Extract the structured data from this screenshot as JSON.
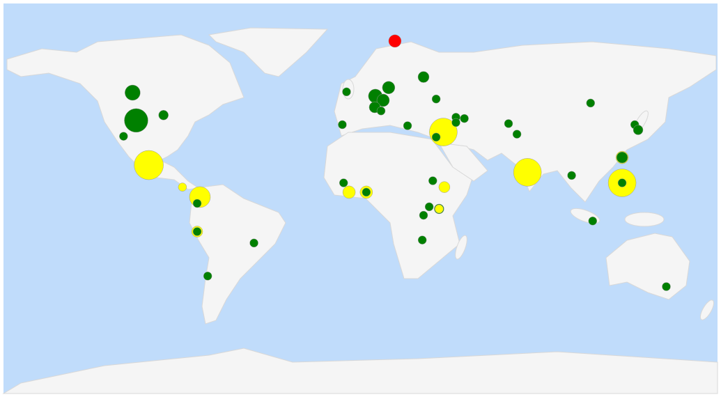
{
  "markers": [
    {
      "lat": 78,
      "lon": 16,
      "size": 81,
      "color": "#ff0000"
    },
    {
      "lat": 53.6,
      "lon": -108.7,
      "size": 121,
      "color": "#008000"
    },
    {
      "lat": 40.5,
      "lon": -107,
      "size": 289,
      "color": "#008000"
    },
    {
      "lat": 43,
      "lon": -94,
      "size": 49,
      "color": "#008000"
    },
    {
      "lat": 33,
      "lon": -113,
      "size": 36,
      "color": "#008000"
    },
    {
      "lat": 19.4,
      "lon": -101,
      "size": 441,
      "color": "#ffff00"
    },
    {
      "lat": 9,
      "lon": -85,
      "size": 36,
      "color": "#ffff00"
    },
    {
      "lat": 4.3,
      "lon": -76.7,
      "size": 225,
      "color": "#ffff00"
    },
    {
      "lat": 1.3,
      "lon": -78,
      "size": 36,
      "color": "#008000"
    },
    {
      "lat": -12,
      "lon": -78,
      "size": 64,
      "color": "#ffff00"
    },
    {
      "lat": -12,
      "lon": -78,
      "size": 36,
      "color": "#008000"
    },
    {
      "lat": -17.4,
      "lon": -51,
      "size": 36,
      "color": "#008000"
    },
    {
      "lat": -33,
      "lon": -73,
      "size": 36,
      "color": "#008000"
    },
    {
      "lat": 54,
      "lon": -7,
      "size": 36,
      "color": "#008000"
    },
    {
      "lat": 52,
      "lon": 6.7,
      "size": 100,
      "color": "#008000"
    },
    {
      "lat": 56,
      "lon": 13,
      "size": 81,
      "color": "#008000"
    },
    {
      "lat": 50,
      "lon": 10.4,
      "size": 81,
      "color": "#008000"
    },
    {
      "lat": 46.7,
      "lon": 6.4,
      "size": 64,
      "color": "#008000"
    },
    {
      "lat": 45,
      "lon": 9.4,
      "size": 36,
      "color": "#008000"
    },
    {
      "lat": 61,
      "lon": 29.6,
      "size": 64,
      "color": "#008000"
    },
    {
      "lat": 50.6,
      "lon": 35.6,
      "size": 36,
      "color": "#008000"
    },
    {
      "lat": 38.5,
      "lon": -9,
      "size": 36,
      "color": "#008000"
    },
    {
      "lat": 38,
      "lon": 22,
      "size": 36,
      "color": "#008000"
    },
    {
      "lat": 35,
      "lon": 39,
      "size": 400,
      "color": "#ffff00"
    },
    {
      "lat": 32.6,
      "lon": 35.6,
      "size": 36,
      "color": "#008000"
    },
    {
      "lat": 42,
      "lon": 45,
      "size": 36,
      "color": "#008000"
    },
    {
      "lat": 39.5,
      "lon": 45,
      "size": 36,
      "color": "#008000"
    },
    {
      "lat": 41.4,
      "lon": 49,
      "size": 36,
      "color": "#008000"
    },
    {
      "lat": 39,
      "lon": 70,
      "size": 36,
      "color": "#008000"
    },
    {
      "lat": 34,
      "lon": 74,
      "size": 36,
      "color": "#008000"
    },
    {
      "lat": 48.7,
      "lon": 109,
      "size": 36,
      "color": "#008000"
    },
    {
      "lat": 38.5,
      "lon": 130,
      "size": 36,
      "color": "#008000"
    },
    {
      "lat": 36,
      "lon": 131.6,
      "size": 49,
      "color": "#008000"
    },
    {
      "lat": 16,
      "lon": 79,
      "size": 400,
      "color": "#ffff00"
    },
    {
      "lat": 14.5,
      "lon": 100,
      "size": 36,
      "color": "#008000"
    },
    {
      "lat": 23,
      "lon": 124,
      "size": 81,
      "color": "#ffff00"
    },
    {
      "lat": 23,
      "lon": 124,
      "size": 64,
      "color": "#008000"
    },
    {
      "lat": 11,
      "lon": 124,
      "size": 400,
      "color": "#ffff00"
    },
    {
      "lat": 11,
      "lon": 124,
      "size": 36,
      "color": "#008000"
    },
    {
      "lat": -7,
      "lon": 110,
      "size": 36,
      "color": "#008000"
    },
    {
      "lat": -38,
      "lon": 145,
      "size": 36,
      "color": "#008000"
    },
    {
      "lat": 11,
      "lon": -8.4,
      "size": 36,
      "color": "#008000"
    },
    {
      "lat": 6.6,
      "lon": -5.8,
      "size": 81,
      "color": "#ffff00"
    },
    {
      "lat": 6.6,
      "lon": 2.4,
      "size": 81,
      "color": "#ffff00"
    },
    {
      "lat": 6.6,
      "lon": 2.4,
      "size": 36,
      "color": "#008000"
    },
    {
      "lat": 12,
      "lon": 34,
      "size": 36,
      "color": "#008000"
    },
    {
      "lat": 9,
      "lon": 39.5,
      "size": 64,
      "color": "#ffff00"
    },
    {
      "lat": -0.3,
      "lon": 32.3,
      "size": 36,
      "color": "#008000"
    },
    {
      "lat": -1.3,
      "lon": 37,
      "size": 49,
      "color": "#008000"
    },
    {
      "lat": -1.3,
      "lon": 37,
      "size": 36,
      "color": "#ffff00"
    },
    {
      "lat": -4.3,
      "lon": 29.6,
      "size": 36,
      "color": "#008000"
    },
    {
      "lat": -16,
      "lon": 29,
      "size": 36,
      "color": "#008000"
    }
  ]
}
